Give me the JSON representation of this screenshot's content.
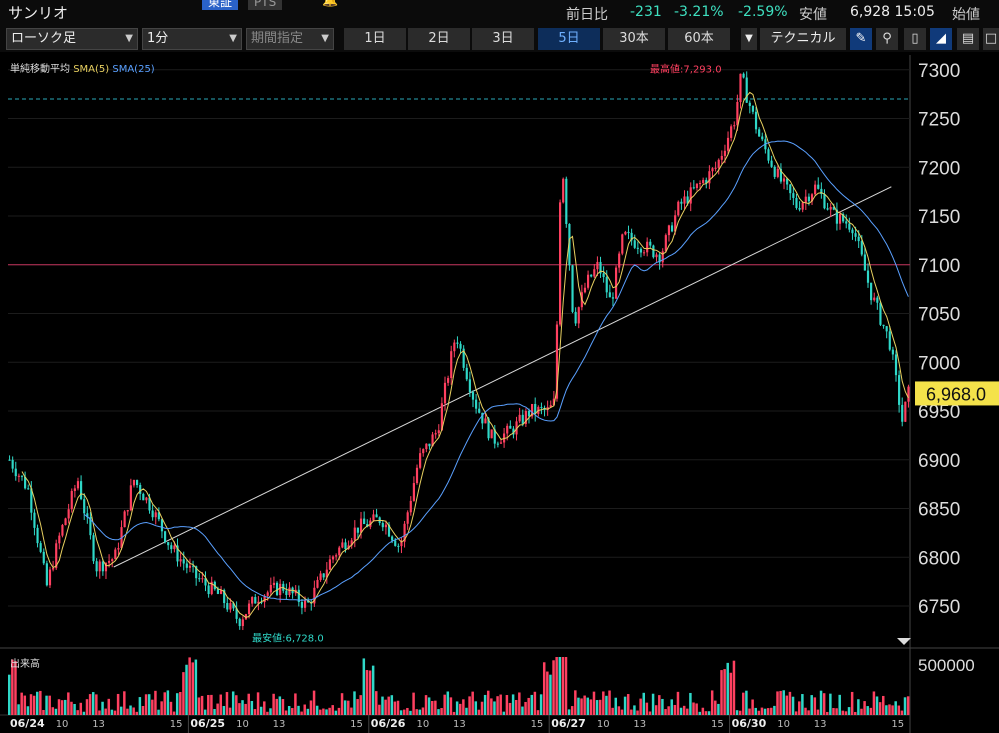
{
  "header": {
    "stock_name": "サンリオ",
    "exchange_tab": "東証",
    "pts_tab": "PTS",
    "change_label": "前日比",
    "change_value": "-231",
    "change_pct": "-3.21%",
    "low_pct": "-2.59%",
    "low_label": "安値",
    "price_time": "6,928 15:05",
    "open_label": "始値"
  },
  "toolbar": {
    "chart_type": "ローソク足",
    "interval": "1分",
    "period_placeholder": "期間指定",
    "ranges": [
      "1日",
      "2日",
      "3日",
      "5日",
      "30本",
      "60本"
    ],
    "active_range": "5日",
    "technical_label": "テクニカル",
    "icons": [
      "pencil-icon",
      "zoom-icon",
      "candle-type-icon",
      "area-chart-icon",
      "save-icon",
      "fullscreen-icon"
    ]
  },
  "indicator": {
    "title": "単純移動平均",
    "sma5": "SMA(5)",
    "sma25": "SMA(25)",
    "sma5_color": "#e8d060",
    "sma25_color": "#5aa0ff"
  },
  "volume_label": "出来高",
  "chart_data": {
    "type": "candlestick",
    "y_ticks": [
      7300,
      7250,
      7200,
      7150,
      7100,
      7050,
      7000,
      6950,
      6900,
      6850,
      6800,
      6750
    ],
    "ylim": [
      6710,
      7310
    ],
    "current_price": "6,968.0",
    "current_value": 6968,
    "high_label": "最高値:7,293.0",
    "high_value": 7293,
    "low_label": "最安値:6,728.0",
    "low_value": 6728,
    "ref_line_value": 7100,
    "ref_dashed_value": 7270,
    "volume_tick": "500000",
    "x_labels": [
      "06/24",
      "10",
      "13",
      "15",
      "06/25",
      "10",
      "13",
      "15",
      "06/26",
      "10",
      "13",
      "15",
      "06/27",
      "10",
      "13",
      "15",
      "06/30",
      "10",
      "13",
      "15"
    ],
    "x_label_bold": [
      "06/24",
      "06/25",
      "06/26",
      "06/27",
      "06/30"
    ],
    "anchors": [
      [
        0,
        6900
      ],
      [
        3,
        6870
      ],
      [
        6,
        6770
      ],
      [
        8,
        6820
      ],
      [
        11,
        6880
      ],
      [
        14,
        6790
      ],
      [
        17,
        6800
      ],
      [
        20,
        6880
      ],
      [
        23,
        6850
      ],
      [
        26,
        6810
      ],
      [
        30,
        6780
      ],
      [
        34,
        6760
      ],
      [
        37,
        6735
      ],
      [
        40,
        6760
      ],
      [
        44,
        6770
      ],
      [
        48,
        6750
      ],
      [
        52,
        6800
      ],
      [
        56,
        6830
      ],
      [
        60,
        6840
      ],
      [
        63,
        6810
      ],
      [
        66,
        6900
      ],
      [
        69,
        6930
      ],
      [
        72,
        7030
      ],
      [
        75,
        6960
      ],
      [
        78,
        6920
      ],
      [
        81,
        6930
      ],
      [
        84,
        6950
      ],
      [
        87,
        6950
      ],
      [
        88,
        6960
      ],
      [
        89,
        7220
      ],
      [
        91,
        7040
      ],
      [
        93,
        7080
      ],
      [
        95,
        7100
      ],
      [
        97,
        7060
      ],
      [
        99,
        7130
      ],
      [
        102,
        7120
      ],
      [
        105,
        7110
      ],
      [
        108,
        7160
      ],
      [
        111,
        7180
      ],
      [
        114,
        7200
      ],
      [
        117,
        7250
      ],
      [
        118,
        7293
      ],
      [
        121,
        7230
      ],
      [
        124,
        7190
      ],
      [
        127,
        7160
      ],
      [
        130,
        7180
      ],
      [
        133,
        7150
      ],
      [
        136,
        7140
      ],
      [
        139,
        7070
      ],
      [
        142,
        7020
      ],
      [
        144,
        6940
      ],
      [
        145,
        6968
      ]
    ]
  }
}
